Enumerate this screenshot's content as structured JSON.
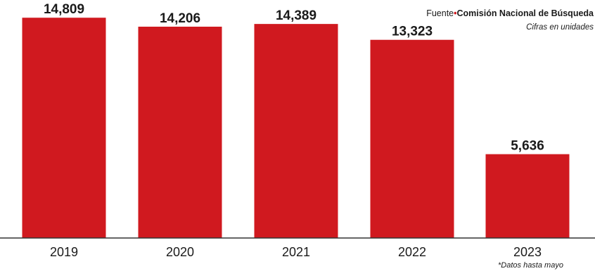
{
  "source": {
    "label": "Fuente",
    "separator": "•",
    "name": "Comisión Nacional de Búsqueda"
  },
  "units_note": "Cifras en unidades",
  "footnote": "*Datos hasta mayo",
  "colors": {
    "bar": "#d0191f",
    "axis": "#333333",
    "text": "#1a1a1a"
  },
  "chart_data": {
    "type": "bar",
    "categories": [
      "2019",
      "2020",
      "2021",
      "2022",
      "2023"
    ],
    "values": [
      14809,
      14206,
      14389,
      13323,
      5636
    ],
    "data_labels": [
      "14,809",
      "14,206",
      "14,389",
      "13,323",
      "5,636"
    ],
    "ylim": [
      0,
      16000
    ],
    "grid": false,
    "legend": "none"
  }
}
